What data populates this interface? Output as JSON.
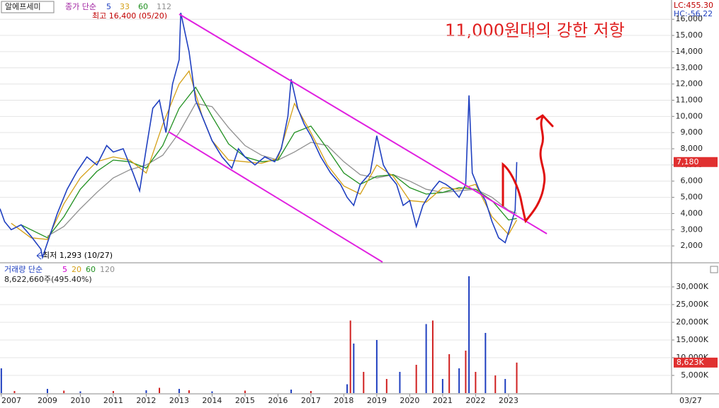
{
  "chart_data": [
    {
      "type": "line",
      "title": "알에프세미",
      "legend_title": "종가 단순",
      "annotation_high": "최고 16,400 (05/20)",
      "annotation_low": "최저 1,293 (10/27)",
      "annotation_note": "11,000원대의 강한 저항",
      "lc_label": "LC:455.30",
      "hc_label": "HC:-56.22",
      "last_price": {
        "value": 7180,
        "label": "7,180"
      },
      "xlim": [
        2007.56,
        2027.95
      ],
      "ylim": [
        1000,
        17190
      ],
      "grid": true,
      "xticks": [
        {
          "value": 2007.6,
          "label": "2007"
        },
        2009,
        2010,
        2011,
        2012,
        2013,
        2014,
        2015,
        2016,
        2017,
        2018,
        2019,
        2020,
        2021,
        2022,
        2023
      ],
      "date_label": "03/27",
      "yticks": [
        {
          "value": 2000,
          "label": "2,000"
        },
        {
          "value": 3000,
          "label": "3,000"
        },
        {
          "value": 4000,
          "label": "4,000"
        },
        {
          "value": 5000,
          "label": "5,000"
        },
        {
          "value": 6000,
          "label": "6,000"
        },
        {
          "value": 7000,
          "label": "7,000"
        },
        {
          "value": 8000,
          "label": "8,000"
        },
        {
          "value": 9000,
          "label": "9,000"
        },
        {
          "value": 10000,
          "label": "10,000"
        },
        {
          "value": 11000,
          "label": "11,000"
        },
        {
          "value": 12000,
          "label": "12,000"
        },
        {
          "value": 13000,
          "label": "13,000"
        },
        {
          "value": 14000,
          "label": "14,000"
        },
        {
          "value": 15000,
          "label": "15,000"
        },
        {
          "value": 16000,
          "label": "16,000"
        }
      ],
      "series": [
        {
          "name": "5",
          "color": "#2040c0",
          "x": [
            2007.56,
            2007.7,
            2007.9,
            2008.2,
            2008.5,
            2008.8,
            2008.85,
            2009.0,
            2009.3,
            2009.6,
            2009.9,
            2010.2,
            2010.5,
            2010.8,
            2011.0,
            2011.3,
            2011.6,
            2011.8,
            2012.0,
            2012.2,
            2012.4,
            2012.6,
            2012.8,
            2013.0,
            2013.05,
            2013.3,
            2013.5,
            2013.8,
            2014.0,
            2014.3,
            2014.6,
            2014.8,
            2015.0,
            2015.3,
            2015.6,
            2015.9,
            2016.1,
            2016.3,
            2016.4,
            2016.6,
            2016.8,
            2017.0,
            2017.3,
            2017.6,
            2017.9,
            2018.1,
            2018.3,
            2018.5,
            2018.8,
            2019.0,
            2019.2,
            2019.4,
            2019.6,
            2019.8,
            2020.0,
            2020.2,
            2020.4,
            2020.7,
            2020.9,
            2021.1,
            2021.3,
            2021.5,
            2021.7,
            2021.8,
            2021.9,
            2022.1,
            2022.3,
            2022.5,
            2022.7,
            2022.9,
            2023.1,
            2023.2,
            2023.25
          ],
          "values": [
            4300,
            3500,
            3000,
            3300,
            2600,
            1800,
            1293,
            2200,
            4000,
            5500,
            6600,
            7500,
            7000,
            8200,
            7800,
            8000,
            6500,
            5400,
            8000,
            10500,
            11000,
            9000,
            12000,
            13500,
            16400,
            14000,
            11000,
            9500,
            8500,
            7500,
            6800,
            8000,
            7500,
            7000,
            7500,
            7200,
            8000,
            10000,
            12300,
            10500,
            9500,
            8800,
            7500,
            6500,
            5800,
            5000,
            4500,
            5800,
            6500,
            8800,
            7000,
            6300,
            5800,
            4500,
            4800,
            3200,
            4500,
            5500,
            6000,
            5800,
            5500,
            5000,
            5800,
            11300,
            6500,
            5500,
            4800,
            3500,
            2500,
            2200,
            3500,
            4200,
            7180
          ]
        },
        {
          "name": "33",
          "color": "#d4a017",
          "x": [
            2007.9,
            2008.5,
            2009.0,
            2009.5,
            2010.0,
            2010.5,
            2011.0,
            2011.5,
            2012.0,
            2012.5,
            2013.0,
            2013.3,
            2013.7,
            2014.0,
            2014.5,
            2015.0,
            2015.5,
            2016.0,
            2016.5,
            2017.0,
            2017.5,
            2018.0,
            2018.5,
            2019.0,
            2019.5,
            2020.0,
            2020.5,
            2021.0,
            2021.5,
            2022.0,
            2022.5,
            2023.0,
            2023.25
          ],
          "values": [
            3400,
            2500,
            2400,
            4600,
            6200,
            7200,
            7500,
            7300,
            6500,
            9500,
            12000,
            12800,
            10000,
            8500,
            7300,
            7200,
            7100,
            7400,
            10800,
            9000,
            7000,
            5700,
            5200,
            7000,
            6300,
            4800,
            4700,
            5600,
            5500,
            5800,
            3800,
            2700,
            3600
          ]
        },
        {
          "name": "60",
          "color": "#209020",
          "x": [
            2008.2,
            2009.0,
            2009.5,
            2010.0,
            2010.5,
            2011.0,
            2011.5,
            2012.0,
            2012.5,
            2013.0,
            2013.5,
            2014.0,
            2014.5,
            2015.0,
            2015.5,
            2016.0,
            2016.5,
            2017.0,
            2017.5,
            2018.0,
            2018.5,
            2019.0,
            2019.5,
            2020.0,
            2020.5,
            2021.0,
            2021.5,
            2022.0,
            2022.5,
            2023.0,
            2023.25
          ],
          "values": [
            3300,
            2500,
            3800,
            5500,
            6600,
            7300,
            7200,
            6800,
            8200,
            10500,
            11800,
            10000,
            8300,
            7500,
            7200,
            7300,
            9000,
            9400,
            8000,
            6500,
            5800,
            6300,
            6400,
            5600,
            5200,
            5300,
            5600,
            5500,
            4800,
            3600,
            3700
          ]
        },
        {
          "name": "112",
          "color": "#909090",
          "x": [
            2009.0,
            2009.5,
            2010.0,
            2010.5,
            2011.0,
            2011.5,
            2012.0,
            2012.5,
            2013.0,
            2013.5,
            2014.0,
            2014.5,
            2015.0,
            2015.5,
            2016.0,
            2016.5,
            2017.0,
            2017.5,
            2018.0,
            2018.5,
            2019.0,
            2019.5,
            2020.0,
            2020.5,
            2021.0,
            2021.5,
            2022.0,
            2022.5,
            2023.0,
            2023.25
          ],
          "values": [
            2600,
            3200,
            4300,
            5300,
            6200,
            6700,
            7000,
            7600,
            9000,
            10800,
            10600,
            9300,
            8200,
            7600,
            7300,
            7800,
            8400,
            8200,
            7200,
            6400,
            6200,
            6400,
            6000,
            5500,
            5300,
            5400,
            5500,
            5000,
            4200,
            4000
          ]
        }
      ]
    },
    {
      "type": "bar",
      "title": "거래량",
      "legend_title": "거래량 단순",
      "legend_items": [
        {
          "name": "5",
          "color": "#d000d0"
        },
        {
          "name": "20",
          "color": "#d4a017"
        },
        {
          "name": "60",
          "color": "#209020"
        },
        {
          "name": "120",
          "color": "#909090"
        }
      ],
      "volume_label": "8,622,660주(495.40%)",
      "last_volume": {
        "value": 8623,
        "label": "8,623K"
      },
      "xlim": [
        2007.56,
        2027.95
      ],
      "ylim": [
        0,
        36400
      ],
      "yticks": [
        {
          "value": 5000,
          "label": "5,000K"
        },
        {
          "value": 10000,
          "label": "10,000K"
        },
        {
          "value": 15000,
          "label": "15,000K"
        },
        {
          "value": 20000,
          "label": "20,000K"
        },
        {
          "value": 25000,
          "label": "25,000K"
        },
        {
          "value": 30000,
          "label": "30,000K"
        }
      ],
      "x": [
        2007.6,
        2008.0,
        2009.0,
        2009.5,
        2010.0,
        2011.0,
        2012.0,
        2012.4,
        2013.0,
        2013.3,
        2014.0,
        2015.0,
        2016.4,
        2017.0,
        2018.1,
        2018.2,
        2018.3,
        2018.6,
        2019.0,
        2019.3,
        2019.7,
        2020.2,
        2020.5,
        2020.7,
        2021.0,
        2021.2,
        2021.5,
        2021.7,
        2021.8,
        2022.0,
        2022.3,
        2022.6,
        2022.9,
        2023.25
      ],
      "color": "#2040c0",
      "values": [
        7000,
        600,
        1200,
        700,
        500,
        600,
        800,
        1500,
        1200,
        800,
        500,
        700,
        1000,
        600,
        2500,
        20500,
        14000,
        6000,
        15000,
        4000,
        6000,
        8000,
        19500,
        20500,
        4000,
        11000,
        7000,
        12000,
        33000,
        6000,
        17000,
        5000,
        4000,
        8623
      ]
    }
  ]
}
